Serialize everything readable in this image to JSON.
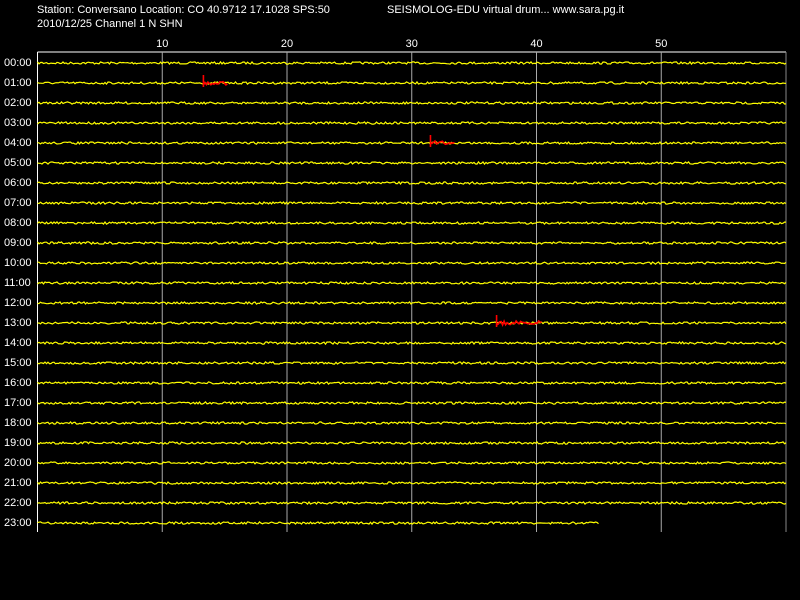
{
  "header": {
    "station": "Station: Conversano Location: CO 40.9712 17.1028 SPS:50",
    "app": "SEISMOLOG-EDU virtual drum... www.sara.pg.it",
    "date": "2010/12/25  Channel 1 N SHN"
  },
  "chart_data": {
    "type": "drum",
    "xlim": [
      0,
      60
    ],
    "xticks": [
      10,
      20,
      30,
      40,
      50
    ],
    "rows": [
      "00:00",
      "01:00",
      "02:00",
      "03:00",
      "04:00",
      "05:00",
      "06:00",
      "07:00",
      "08:00",
      "09:00",
      "10:00",
      "11:00",
      "12:00",
      "13:00",
      "14:00",
      "15:00",
      "16:00",
      "17:00",
      "18:00",
      "19:00",
      "20:00",
      "21:00",
      "22:00",
      "23:00"
    ],
    "trace_color": "#ffff00",
    "event_color": "#ff0000",
    "grid": true,
    "last_row_end": 45,
    "events": [
      {
        "row": 1,
        "start": 13.3,
        "end": 15.3
      },
      {
        "row": 4,
        "start": 31.5,
        "end": 33.5
      },
      {
        "row": 13,
        "start": 36.8,
        "end": 40.5
      }
    ]
  }
}
